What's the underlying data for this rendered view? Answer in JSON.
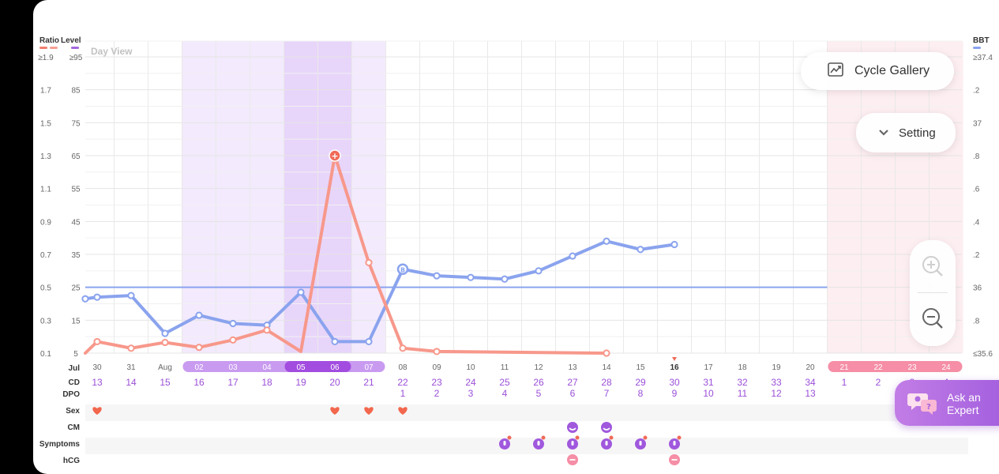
{
  "legend": {
    "ratio_label": "Ratio",
    "level_label": "Level",
    "bbt_label": "BBT",
    "colors": {
      "ratio": "#f27f6f",
      "ratio2": "#f7a094",
      "level": "#a466e0",
      "bbt": "#8aa3ee"
    }
  },
  "view_label": "Day View",
  "buttons": {
    "cycle_gallery": "Cycle Gallery",
    "setting": "Setting",
    "ask_expert_line1": "Ask an",
    "ask_expert_line2": "Expert"
  },
  "row_labels": {
    "month": "Jul",
    "cd": "CD",
    "dpo": "DPO",
    "sex": "Sex",
    "cm": "CM",
    "symptoms": "Symptoms",
    "hcg": "hCG"
  },
  "axes": {
    "left_ratio": [
      "≥1.9",
      "1.7",
      "1.5",
      "1.3",
      "1.1",
      "0.9",
      "0.7",
      "0.5",
      "0.3",
      "0.1"
    ],
    "left_level": [
      "≥95",
      "85",
      "75",
      "65",
      "55",
      "45",
      "35",
      "25",
      "15",
      "5"
    ],
    "right_bbt": [
      "≥37.4",
      ".2",
      "37",
      ".8",
      ".6",
      ".4",
      ".2",
      "36",
      ".8",
      "≤35.6"
    ]
  },
  "days": [
    {
      "date": "30",
      "cd": "13",
      "dpo": "",
      "band": "none"
    },
    {
      "date": "31",
      "cd": "14",
      "dpo": "",
      "band": "none"
    },
    {
      "date": "Aug",
      "cd": "15",
      "dpo": "",
      "band": "none"
    },
    {
      "date": "02",
      "cd": "16",
      "dpo": "",
      "band": "fertile"
    },
    {
      "date": "03",
      "cd": "17",
      "dpo": "",
      "band": "fertile"
    },
    {
      "date": "04",
      "cd": "18",
      "dpo": "",
      "band": "fertile"
    },
    {
      "date": "05",
      "cd": "19",
      "dpo": "",
      "band": "peak"
    },
    {
      "date": "06",
      "cd": "20",
      "dpo": "",
      "band": "peak"
    },
    {
      "date": "07",
      "cd": "21",
      "dpo": "",
      "band": "fertile"
    },
    {
      "date": "08",
      "cd": "22",
      "dpo": "1",
      "band": "none"
    },
    {
      "date": "09",
      "cd": "23",
      "dpo": "2",
      "band": "none"
    },
    {
      "date": "10",
      "cd": "24",
      "dpo": "3",
      "band": "none"
    },
    {
      "date": "11",
      "cd": "25",
      "dpo": "4",
      "band": "none"
    },
    {
      "date": "12",
      "cd": "26",
      "dpo": "5",
      "band": "none"
    },
    {
      "date": "13",
      "cd": "27",
      "dpo": "6",
      "band": "none"
    },
    {
      "date": "14",
      "cd": "28",
      "dpo": "7",
      "band": "none"
    },
    {
      "date": "15",
      "cd": "29",
      "dpo": "8",
      "band": "none"
    },
    {
      "date": "16",
      "cd": "30",
      "dpo": "9",
      "band": "none"
    },
    {
      "date": "17",
      "cd": "31",
      "dpo": "10",
      "band": "none"
    },
    {
      "date": "18",
      "cd": "32",
      "dpo": "11",
      "band": "none"
    },
    {
      "date": "19",
      "cd": "33",
      "dpo": "12",
      "band": "none"
    },
    {
      "date": "20",
      "cd": "34",
      "dpo": "13",
      "band": "none"
    },
    {
      "date": "21",
      "cd": "1",
      "dpo": "",
      "band": "period"
    },
    {
      "date": "22",
      "cd": "2",
      "dpo": "",
      "band": "period"
    },
    {
      "date": "23",
      "cd": "3",
      "dpo": "",
      "band": "period"
    },
    {
      "date": "24",
      "cd": "4",
      "dpo": "",
      "band": "period"
    }
  ],
  "today_index": 17,
  "chart_data": {
    "type": "line",
    "x_day_index": [
      0,
      1,
      2,
      3,
      4,
      5,
      6,
      7,
      8,
      9,
      10,
      11,
      12,
      13,
      14,
      15,
      16,
      17,
      18,
      19,
      20,
      21,
      22,
      23,
      24,
      25
    ],
    "series": [
      {
        "name": "BBT",
        "color": "#8aa3ee",
        "axis": "right",
        "points": [
          [
            -0.35,
            35.93
          ],
          [
            0,
            35.94
          ],
          [
            1,
            35.95
          ],
          [
            2,
            35.72
          ],
          [
            3,
            35.83
          ],
          [
            4,
            35.78
          ],
          [
            5,
            35.77
          ],
          [
            6,
            35.97
          ],
          [
            7,
            35.67
          ],
          [
            8,
            35.67
          ],
          [
            9,
            36.11
          ],
          [
            10,
            36.07
          ],
          [
            11,
            36.06
          ],
          [
            12,
            36.05
          ],
          [
            13,
            36.1
          ],
          [
            14,
            36.19
          ],
          [
            15,
            36.28
          ],
          [
            16,
            36.23
          ],
          [
            17,
            36.26
          ]
        ],
        "open_points": [
          0,
          1,
          2,
          3,
          4,
          5,
          6,
          7,
          8,
          9,
          10,
          11,
          12,
          13,
          14,
          15,
          16,
          17,
          18
        ],
        "labeled_point": {
          "index": 10,
          "label": "B"
        }
      },
      {
        "name": "Ratio",
        "color": "#f7988b",
        "axis": "left",
        "points": [
          [
            -0.35,
            0.1
          ],
          [
            0,
            0.17
          ],
          [
            1,
            0.13
          ],
          [
            2,
            0.165
          ],
          [
            3,
            0.135
          ],
          [
            4,
            0.18
          ],
          [
            5,
            0.24
          ],
          [
            6,
            0.11
          ],
          [
            7,
            1.3
          ],
          [
            8,
            0.65
          ],
          [
            9,
            0.13
          ],
          [
            10,
            0.11
          ],
          [
            15,
            0.1
          ]
        ],
        "open_points": [
          1,
          2,
          3,
          4,
          5,
          6,
          8,
          9,
          10,
          11,
          12
        ],
        "peak_point": {
          "index": 8,
          "label": "+"
        }
      }
    ],
    "coverline_bbt": 36.0,
    "ylim_ratio": [
      0.1,
      1.9
    ],
    "ylim_level": [
      5,
      95
    ],
    "ylim_bbt": [
      35.6,
      37.4
    ]
  },
  "records": {
    "sex_days": [
      0,
      7,
      8,
      9
    ],
    "cm_days": [
      14,
      15
    ],
    "symptom_days": [
      12,
      13,
      14,
      15,
      16,
      17
    ],
    "hcg_days": [
      14,
      17
    ]
  }
}
